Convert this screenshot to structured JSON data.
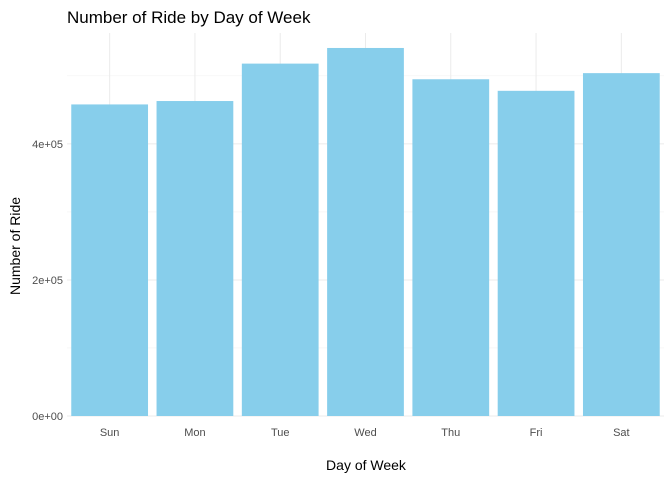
{
  "chart_data": {
    "type": "bar",
    "title": "Number of Ride by Day of Week",
    "xlabel": "Day of Week",
    "ylabel": "Number of Ride",
    "categories": [
      "Sun",
      "Mon",
      "Tue",
      "Wed",
      "Thu",
      "Fri",
      "Sat"
    ],
    "values": [
      458000,
      463000,
      518000,
      541000,
      495000,
      478000,
      504000
    ],
    "ylim": [
      0,
      541000
    ],
    "y_ticks": [
      0,
      200000,
      400000
    ],
    "y_tick_labels": [
      "0e+00",
      "2e+05",
      "4e+05"
    ],
    "bar_color": "#87CEEB",
    "grid": true,
    "legend": "none"
  }
}
